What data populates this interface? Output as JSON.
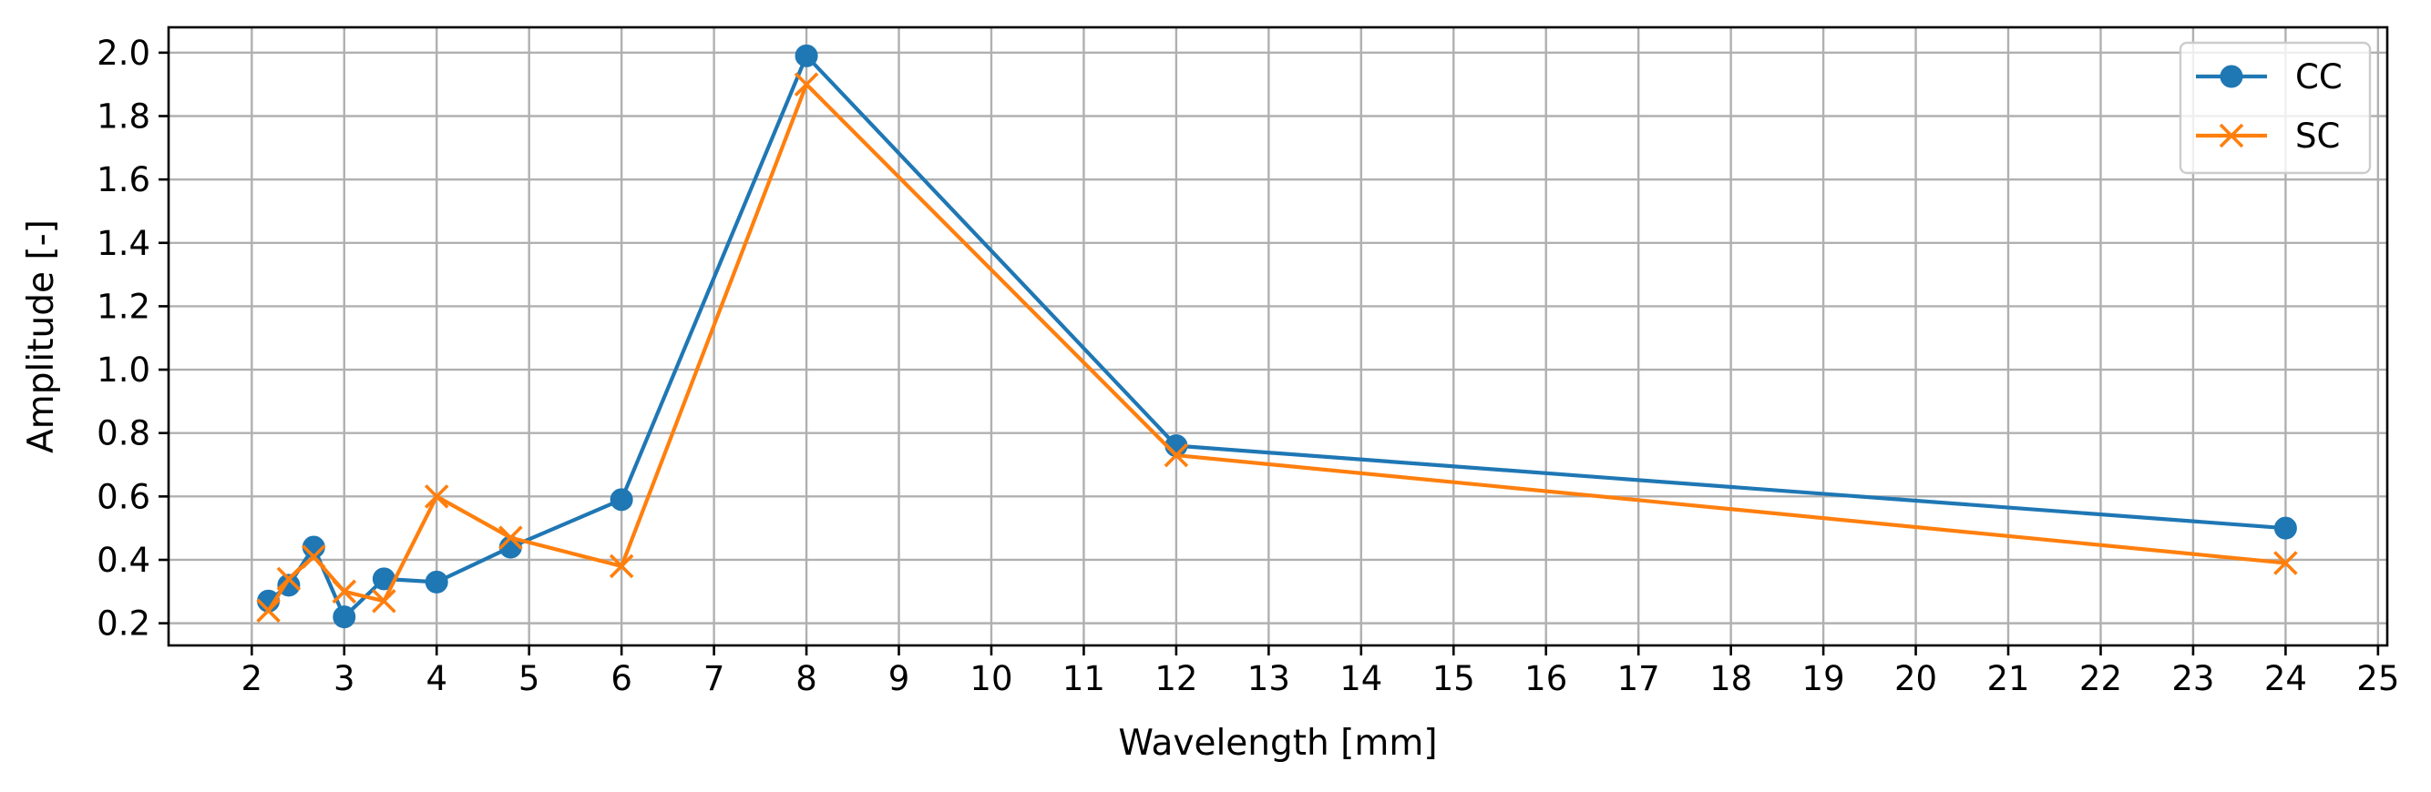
{
  "chart_data": {
    "type": "line",
    "xlabel": "Wavelength [mm]",
    "ylabel": "Amplitude [-]",
    "xlim": [
      1.1,
      25.1
    ],
    "ylim": [
      0.13,
      2.08
    ],
    "xticks": [
      2,
      3,
      4,
      5,
      6,
      7,
      8,
      9,
      10,
      11,
      12,
      13,
      14,
      15,
      16,
      17,
      18,
      19,
      20,
      21,
      22,
      23,
      24,
      25
    ],
    "yticks": [
      0.2,
      0.4,
      0.6,
      0.8,
      1.0,
      1.2,
      1.4,
      1.6,
      1.8,
      2.0
    ],
    "ytick_labels": [
      "0.2",
      "0.4",
      "0.6",
      "0.8",
      "1.0",
      "1.2",
      "1.4",
      "1.6",
      "1.8",
      "2.0"
    ],
    "grid": true,
    "legend_position": "top-right",
    "series": [
      {
        "name": "CC",
        "color": "#1f77b4",
        "marker": "circle",
        "x": [
          2.18,
          2.4,
          2.67,
          3.0,
          3.43,
          4.0,
          4.8,
          6.0,
          8.0,
          12.0,
          24.0
        ],
        "y": [
          0.27,
          0.32,
          0.44,
          0.22,
          0.34,
          0.33,
          0.44,
          0.59,
          1.99,
          0.76,
          0.5
        ]
      },
      {
        "name": "SC",
        "color": "#ff7f0e",
        "marker": "x",
        "x": [
          2.18,
          2.4,
          2.67,
          3.0,
          3.43,
          4.0,
          4.8,
          6.0,
          8.0,
          12.0,
          24.0
        ],
        "y": [
          0.24,
          0.34,
          0.41,
          0.3,
          0.27,
          0.6,
          0.47,
          0.38,
          1.9,
          0.73,
          0.39
        ]
      }
    ]
  }
}
